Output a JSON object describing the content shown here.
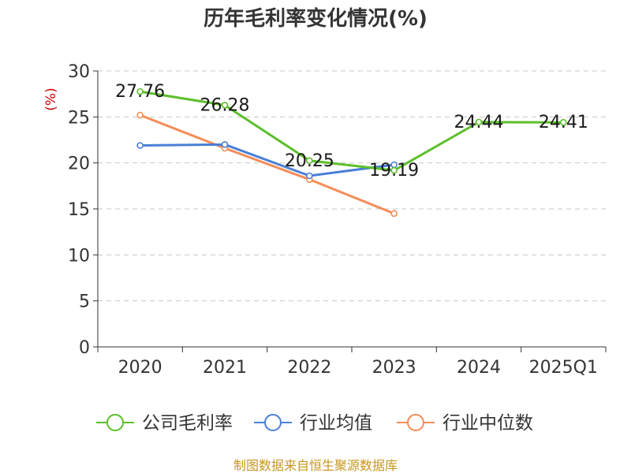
{
  "chart_data": {
    "type": "line",
    "title": "历年毛利率变化情况(%)",
    "ylabel": "(%)",
    "xlabel": "",
    "categories": [
      "2020",
      "2021",
      "2022",
      "2023",
      "2024",
      "2025Q1"
    ],
    "ylim": [
      0,
      30
    ],
    "yticks": [
      0,
      5,
      10,
      15,
      20,
      25,
      30
    ],
    "grid": "horizontal-dashed",
    "legend_position": "bottom",
    "series": [
      {
        "name": "公司毛利率",
        "color": "#5cbf2a",
        "values": [
          27.76,
          26.28,
          20.25,
          19.19,
          24.44,
          24.41
        ],
        "labels": [
          "27.76",
          "26.28",
          "20.25",
          "19.19",
          "24.44",
          "24.41"
        ]
      },
      {
        "name": "行业均值",
        "color": "#4a7fd6",
        "values": [
          21.9,
          22.0,
          18.6,
          19.8,
          null,
          null
        ]
      },
      {
        "name": "行业中位数",
        "color": "#f58c57",
        "values": [
          25.2,
          21.6,
          18.2,
          14.5,
          null,
          null
        ]
      }
    ]
  },
  "source": "制图数据来自恒生聚源数据库"
}
